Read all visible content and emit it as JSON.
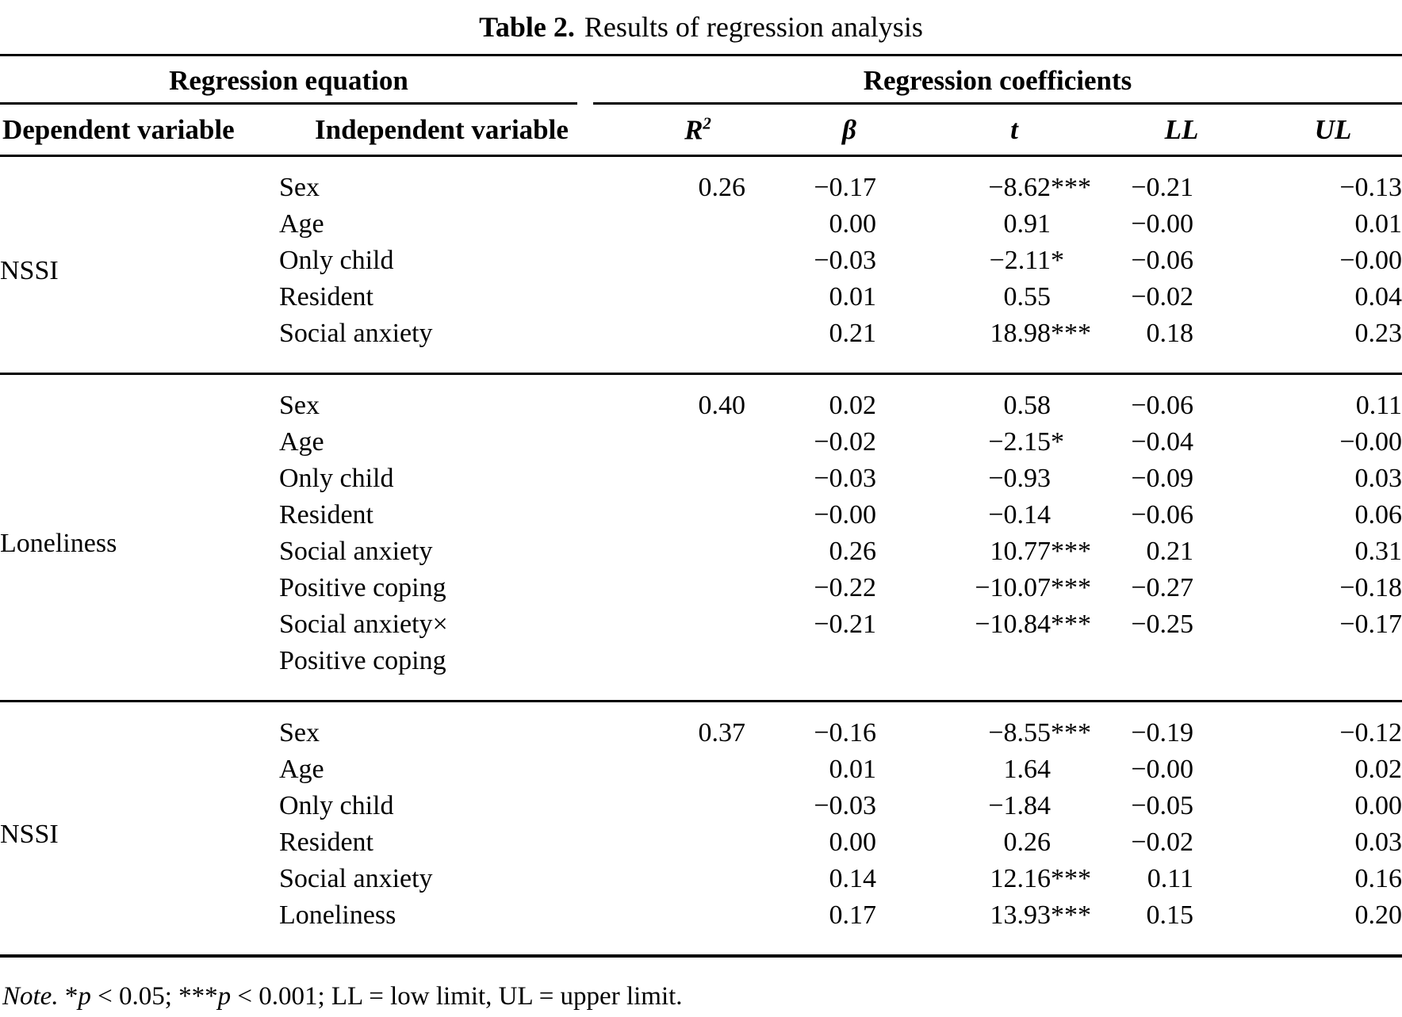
{
  "title": {
    "label": "Table 2.",
    "text": "Results of regression analysis"
  },
  "header": {
    "group_equation": "Regression equation",
    "group_coefficients": "Regression coefficients",
    "col_dependent": "Dependent variable",
    "col_independent": "Independent variable",
    "col_r2_base": "R",
    "col_r2_sup": "2",
    "col_beta": "β",
    "col_t": "t",
    "col_ll": "LL",
    "col_ul": "UL"
  },
  "blocks": [
    {
      "dependent": "NSSI",
      "rows": [
        {
          "iv": "Sex",
          "r2": "0.26",
          "beta": "−0.17",
          "t": "−8.62",
          "sig": "***",
          "ll": "−0.21",
          "ul": "−0.13"
        },
        {
          "iv": "Age",
          "r2": "",
          "beta": "0.00",
          "t": "0.91",
          "sig": "",
          "ll": "−0.00",
          "ul": "0.01"
        },
        {
          "iv": "Only child",
          "r2": "",
          "beta": "−0.03",
          "t": "−2.11",
          "sig": "*",
          "ll": "−0.06",
          "ul": "−0.00"
        },
        {
          "iv": "Resident",
          "r2": "",
          "beta": "0.01",
          "t": "0.55",
          "sig": "",
          "ll": "−0.02",
          "ul": "0.04"
        },
        {
          "iv": "Social anxiety",
          "r2": "",
          "beta": "0.21",
          "t": "18.98",
          "sig": "***",
          "ll": "0.18",
          "ul": "0.23"
        }
      ]
    },
    {
      "dependent": "Loneliness",
      "rows": [
        {
          "iv": "Sex",
          "r2": "0.40",
          "beta": "0.02",
          "t": "0.58",
          "sig": "",
          "ll": "−0.06",
          "ul": "0.11"
        },
        {
          "iv": "Age",
          "r2": "",
          "beta": "−0.02",
          "t": "−2.15",
          "sig": "*",
          "ll": "−0.04",
          "ul": "−0.00"
        },
        {
          "iv": "Only child",
          "r2": "",
          "beta": "−0.03",
          "t": "−0.93",
          "sig": "",
          "ll": "−0.09",
          "ul": "0.03"
        },
        {
          "iv": "Resident",
          "r2": "",
          "beta": "−0.00",
          "t": "−0.14",
          "sig": "",
          "ll": "−0.06",
          "ul": "0.06"
        },
        {
          "iv": "Social anxiety",
          "r2": "",
          "beta": "0.26",
          "t": "10.77",
          "sig": "***",
          "ll": "0.21",
          "ul": "0.31"
        },
        {
          "iv": "Positive coping",
          "r2": "",
          "beta": "−0.22",
          "t": "−10.07",
          "sig": "***",
          "ll": "−0.27",
          "ul": "−0.18"
        },
        {
          "iv": "Social anxiety×",
          "r2": "",
          "beta": "−0.21",
          "t": "−10.84",
          "sig": "***",
          "ll": "−0.25",
          "ul": "−0.17"
        },
        {
          "iv": "Positive coping",
          "r2": "",
          "beta": "",
          "t": "",
          "sig": "",
          "ll": "",
          "ul": ""
        }
      ]
    },
    {
      "dependent": "NSSI",
      "rows": [
        {
          "iv": "Sex",
          "r2": "0.37",
          "beta": "−0.16",
          "t": "−8.55",
          "sig": "***",
          "ll": "−0.19",
          "ul": "−0.12"
        },
        {
          "iv": "Age",
          "r2": "",
          "beta": "0.01",
          "t": "1.64",
          "sig": "",
          "ll": "−0.00",
          "ul": "0.02"
        },
        {
          "iv": "Only child",
          "r2": "",
          "beta": "−0.03",
          "t": "−1.84",
          "sig": "",
          "ll": "−0.05",
          "ul": "0.00"
        },
        {
          "iv": "Resident",
          "r2": "",
          "beta": "0.00",
          "t": "0.26",
          "sig": "",
          "ll": "−0.02",
          "ul": "0.03"
        },
        {
          "iv": "Social anxiety",
          "r2": "",
          "beta": "0.14",
          "t": "12.16",
          "sig": "***",
          "ll": "0.11",
          "ul": "0.16"
        },
        {
          "iv": "Loneliness",
          "r2": "",
          "beta": "0.17",
          "t": "13.93",
          "sig": "***",
          "ll": "0.15",
          "ul": "0.20"
        }
      ]
    }
  ],
  "note": {
    "label": "Note.",
    "seg1": " *",
    "p1": "p",
    "seg2": " < 0.05; ***",
    "p2": "p",
    "seg3": " < 0.001; LL = low limit, UL = upper limit."
  }
}
